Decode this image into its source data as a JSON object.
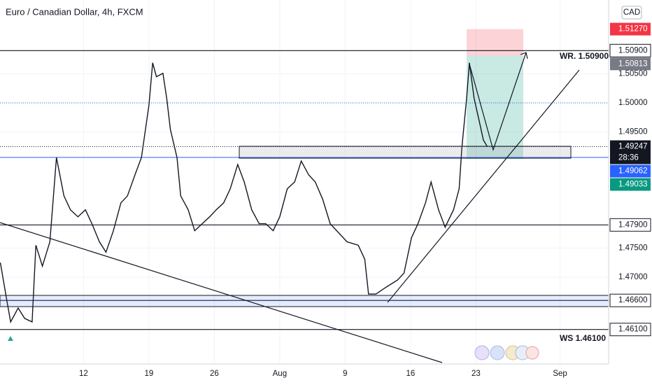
{
  "chart_data": {
    "type": "line",
    "title": "Euro / Canadian Dollar, 4h, FXCM",
    "currency": "CAD",
    "countdown": "28:36",
    "color": "#131722",
    "x": [
      3.1,
      3.8,
      4.2,
      5.0,
      5.7,
      6.5,
      6.9,
      7.6,
      8.4,
      9.1,
      9.9,
      10.6,
      11.4,
      12.2,
      12.9,
      13.7,
      14.4,
      15.2,
      16.0,
      16.7,
      17.5,
      18.2,
      19.0,
      19.4,
      19.8,
      20.5,
      20.9,
      21.3,
      22.0,
      22.4,
      23.2,
      23.9,
      24.7,
      25.5,
      26.2,
      27.0,
      27.7,
      28.5,
      29.2,
      30.0,
      30.8,
      31.5,
      32.3,
      33.0,
      33.8,
      34.6,
      35.3,
      36.1,
      36.8,
      37.6,
      38.4,
      39.1,
      40.2,
      41.4,
      42.1,
      42.5,
      43.3,
      44.4,
      45.6,
      46.3,
      47.1,
      47.8,
      48.6,
      49.2,
      50.0,
      50.7,
      51.6,
      52.2,
      52.5,
      53.0,
      53.3,
      53.8,
      54.3,
      54.8,
      55.2
    ],
    "values": [
      1.4725,
      1.4659,
      1.4623,
      1.4647,
      1.4629,
      1.4623,
      1.4755,
      1.4719,
      1.4761,
      1.4906,
      1.484,
      1.4816,
      1.4804,
      1.4816,
      1.4792,
      1.4761,
      1.4743,
      1.478,
      1.4828,
      1.484,
      1.4876,
      1.4906,
      1.4996,
      1.5069,
      1.5045,
      1.5051,
      1.5008,
      1.4954,
      1.4906,
      1.484,
      1.4816,
      1.478,
      1.4792,
      1.4804,
      1.4816,
      1.4828,
      1.4852,
      1.4894,
      1.4864,
      1.4816,
      1.4792,
      1.4792,
      1.478,
      1.4804,
      1.4852,
      1.4864,
      1.49,
      1.4876,
      1.4864,
      1.4834,
      1.4792,
      1.478,
      1.4761,
      1.4755,
      1.4731,
      1.4671,
      1.4671,
      1.4683,
      1.4695,
      1.4707,
      1.4768,
      1.4792,
      1.4828,
      1.4864,
      1.4816,
      1.4786,
      1.4816,
      1.4852,
      1.4924,
      1.5008,
      1.5069,
      1.5008,
      1.4972,
      1.4936,
      1.4925
    ],
    "xlim": [
      3.06,
      68.2
    ],
    "ylim": [
      1.45506,
      1.51771
    ],
    "xticks": [
      12,
      19,
      26,
      {
        "value": 33,
        "label": "Aug"
      },
      {
        "value": 40,
        "label": "9"
      },
      {
        "value": 47,
        "label": "16"
      },
      {
        "value": 54,
        "label": "23"
      },
      {
        "value": 63,
        "label": "Sep"
      }
    ],
    "yticks": [
      {
        "value": 1.505,
        "label": "1.50500"
      },
      {
        "value": 1.5,
        "label": "1.50000"
      },
      {
        "value": 1.495,
        "label": "1.49500"
      },
      {
        "value": 1.475,
        "label": "1.47500"
      },
      {
        "value": 1.47,
        "label": "1.47000"
      }
    ],
    "levels": [
      {
        "value": 1.509,
        "label": "1.50900"
      },
      {
        "value": 1.479,
        "label": "1.47900"
      },
      {
        "value": 1.466,
        "label": "1.46600"
      },
      {
        "value": 1.461,
        "label": "1.46100"
      }
    ],
    "markers": [
      {
        "value": 1.5127,
        "label": "1.51270",
        "color": "#f23645"
      },
      {
        "value": 1.50813,
        "label": "1.50813",
        "color": "#787b86"
      },
      {
        "value": 1.49247,
        "label": "1.49247",
        "color": "#131722"
      },
      {
        "value": 1.49062,
        "label": "1.49062",
        "color": "#2962ff"
      },
      {
        "value": 1.49033,
        "label": "1.49033",
        "color": "#089981"
      }
    ],
    "annotations": [
      "WR. 1.50900",
      "WS 1.46100"
    ]
  }
}
